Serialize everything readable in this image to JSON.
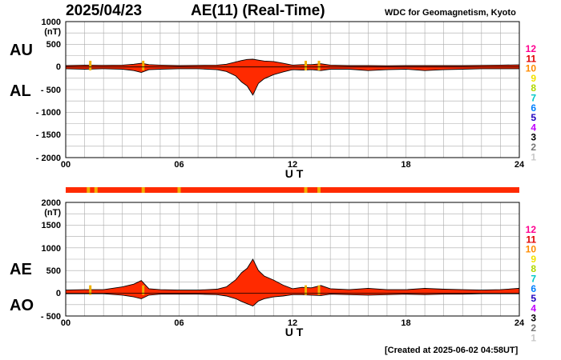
{
  "header": {
    "date": "2025/04/23",
    "title": "AE(11) (Real-Time)",
    "org": "WDC for Geomagnetism, Kyoto",
    "created": "[Created at 2025-06-02 04:58UT]"
  },
  "side_labels": {
    "au": "AU",
    "al": "AL",
    "ae": "AE",
    "ao": "AO"
  },
  "colors": {
    "fill": "#ff2a00",
    "station_band": "#ff2a00",
    "station_flag": "#f0b000",
    "grid": "#aaaaaa",
    "station_count_colors": {
      "12": "#ff0090",
      "11": "#e00000",
      "10": "#ff8c00",
      "9": "#f2e200",
      "8": "#b0d800",
      "7": "#00c8c8",
      "6": "#0080ff",
      "5": "#2000c0",
      "4": "#c000ff",
      "3": "#000000",
      "2": "#777777",
      "1": "#c8c8c8"
    }
  },
  "chart_data": [
    {
      "type": "area",
      "name": "AU/AL",
      "ylabel": "(nT)",
      "xlabel": "U T",
      "x_ticks": [
        "00",
        "06",
        "12",
        "18",
        "24"
      ],
      "y_ticks": [
        "1000",
        "500",
        "0",
        "- 500",
        "- 1000",
        "- 1500",
        "- 2000"
      ],
      "ylim": [
        -2000,
        1000
      ],
      "xlim": [
        0,
        24
      ],
      "grid": true,
      "series": [
        {
          "name": "AU",
          "x": [
            0,
            1,
            2,
            3,
            3.6,
            4,
            4.4,
            5,
            6,
            7,
            8,
            8.5,
            9,
            9.3,
            9.6,
            9.9,
            10.2,
            10.5,
            11,
            11.5,
            12,
            12.5,
            13,
            13.5,
            14,
            15,
            16,
            17,
            18,
            19,
            20,
            21,
            22,
            23,
            24
          ],
          "values": [
            30,
            40,
            35,
            40,
            60,
            80,
            50,
            40,
            30,
            35,
            40,
            60,
            110,
            140,
            165,
            170,
            150,
            130,
            120,
            80,
            40,
            50,
            50,
            70,
            40,
            30,
            30,
            25,
            30,
            30,
            30,
            30,
            35,
            40,
            45
          ]
        },
        {
          "name": "AL",
          "x": [
            0,
            1,
            2,
            3,
            3.6,
            4,
            4.4,
            5,
            6,
            7,
            8,
            8.5,
            9,
            9.3,
            9.6,
            9.9,
            10.2,
            10.5,
            11,
            11.5,
            12,
            12.5,
            13,
            13.5,
            14,
            15,
            16,
            17,
            18,
            19,
            20,
            21,
            22,
            23,
            24
          ],
          "values": [
            -40,
            -50,
            -40,
            -50,
            -80,
            -120,
            -60,
            -50,
            -40,
            -40,
            -60,
            -100,
            -200,
            -330,
            -420,
            -620,
            -360,
            -260,
            -170,
            -110,
            -60,
            -70,
            -60,
            -80,
            -50,
            -50,
            -80,
            -60,
            -50,
            -80,
            -60,
            -50,
            -40,
            -40,
            -40
          ]
        }
      ],
      "flags_x": [
        1.3,
        4.1,
        12.7,
        13.4
      ],
      "station_count_scale": [
        "12",
        "11",
        "10",
        "9",
        "8",
        "7",
        "6",
        "5",
        "4",
        "3",
        "2",
        "1"
      ]
    },
    {
      "type": "area",
      "name": "AE/AO",
      "ylabel": "(nT)",
      "xlabel": "U T",
      "x_ticks": [
        "00",
        "06",
        "12",
        "18",
        "24"
      ],
      "y_ticks": [
        "2000",
        "1500",
        "1000",
        "500",
        "0",
        "- 500"
      ],
      "ylim": [
        -500,
        2000
      ],
      "xlim": [
        0,
        24
      ],
      "grid": true,
      "series": [
        {
          "name": "AE",
          "x": [
            0,
            1,
            2,
            3,
            3.6,
            4,
            4.4,
            5,
            6,
            7,
            8,
            8.5,
            9,
            9.3,
            9.6,
            9.9,
            10.2,
            10.5,
            11,
            11.5,
            12,
            12.5,
            13,
            13.5,
            14,
            15,
            16,
            17,
            18,
            19,
            20,
            21,
            22,
            23,
            24
          ],
          "values": [
            70,
            80,
            80,
            140,
            200,
            280,
            100,
            80,
            70,
            70,
            90,
            140,
            300,
            450,
            550,
            750,
            500,
            380,
            290,
            180,
            100,
            130,
            120,
            170,
            100,
            80,
            110,
            80,
            80,
            110,
            90,
            80,
            70,
            80,
            110
          ]
        },
        {
          "name": "AO",
          "x": [
            0,
            1,
            2,
            3,
            3.6,
            4,
            4.4,
            5,
            6,
            7,
            8,
            8.5,
            9,
            9.3,
            9.6,
            9.9,
            10.2,
            10.5,
            11,
            11.5,
            12,
            12.5,
            13,
            13.5,
            14,
            15,
            16,
            17,
            18,
            19,
            20,
            21,
            22,
            23,
            24
          ],
          "values": [
            -10,
            -10,
            -10,
            -40,
            -80,
            -120,
            -40,
            -20,
            -20,
            -20,
            -30,
            -60,
            -120,
            -180,
            -230,
            -280,
            -170,
            -120,
            -80,
            -60,
            -30,
            -30,
            -40,
            -50,
            -20,
            -30,
            -40,
            -30,
            -20,
            -30,
            -20,
            -20,
            -10,
            -10,
            -10
          ]
        }
      ],
      "flags_x": [
        1.3,
        4.1,
        12.7,
        13.4
      ],
      "station_count_scale": [
        "12",
        "11",
        "10",
        "9",
        "8",
        "7",
        "6",
        "5",
        "4",
        "3",
        "2",
        "1"
      ]
    }
  ],
  "station_band": {
    "flags_x": [
      1.2,
      1.6,
      4.1,
      6.0,
      12.7,
      13.4
    ]
  }
}
